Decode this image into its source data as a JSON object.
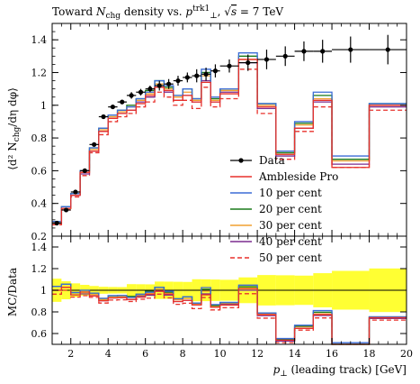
{
  "chart_data": {
    "type": "line",
    "title": "Toward N_chg density vs. p_⊥^trk1, √s = 7 TeV",
    "xlabel": "p_⊥ (leading track) [GeV]",
    "ylabel": "⟨d² N_chg/dη dφ⟩",
    "ratio_ylabel": "MC/Data",
    "xlim": [
      1,
      20
    ],
    "ylim": [
      0.2,
      1.5
    ],
    "ratio_ylim": [
      0.5,
      1.5
    ],
    "x_ticks": [
      2,
      4,
      6,
      8,
      10,
      12,
      14,
      16,
      18,
      20
    ],
    "y_ticks": [
      0.2,
      0.4,
      0.6,
      0.8,
      1,
      1.2,
      1.4
    ],
    "ratio_y_ticks": [
      0.6,
      0.8,
      1,
      1.2,
      1.4
    ],
    "legend_position": "lower-right",
    "bin_edges": [
      1.0,
      1.5,
      2.0,
      2.5,
      3.0,
      3.5,
      4.0,
      4.5,
      5.0,
      5.5,
      6.0,
      6.5,
      7.0,
      7.5,
      8.0,
      8.5,
      9.0,
      9.5,
      10.0,
      11.0,
      12.0,
      13.0,
      14.0,
      15.0,
      16.0,
      18.0,
      20.0
    ],
    "data": {
      "name": "Data",
      "x": [
        1.25,
        1.75,
        2.25,
        2.75,
        3.25,
        3.75,
        4.25,
        4.75,
        5.25,
        5.75,
        6.25,
        6.75,
        7.25,
        7.75,
        8.25,
        8.75,
        9.25,
        9.75,
        10.5,
        11.5,
        12.5,
        13.5,
        14.5,
        15.5,
        17.0,
        19.0
      ],
      "y": [
        0.28,
        0.36,
        0.47,
        0.6,
        0.76,
        0.93,
        0.99,
        1.02,
        1.06,
        1.08,
        1.1,
        1.12,
        1.13,
        1.15,
        1.17,
        1.18,
        1.19,
        1.21,
        1.24,
        1.26,
        1.28,
        1.3,
        1.33,
        1.33,
        1.34,
        1.34
      ],
      "yerr": [
        0.01,
        0.01,
        0.01,
        0.01,
        0.01,
        0.01,
        0.01,
        0.01,
        0.02,
        0.02,
        0.02,
        0.03,
        0.03,
        0.03,
        0.03,
        0.04,
        0.04,
        0.04,
        0.04,
        0.05,
        0.06,
        0.06,
        0.06,
        0.07,
        0.08,
        0.09
      ],
      "color": "#000000"
    },
    "series": [
      {
        "name": "Ambleside Pro",
        "color": "#e8312b",
        "dash": false,
        "values": [
          0.28,
          0.37,
          0.45,
          0.59,
          0.72,
          0.84,
          0.92,
          0.95,
          0.97,
          1.01,
          1.06,
          1.11,
          1.09,
          1.03,
          1.06,
          1.02,
          1.14,
          1.02,
          1.07,
          1.28,
          0.99,
          0.7,
          0.86,
          1.03,
          0.62,
          1.0
        ]
      },
      {
        "name": "10 per cent",
        "color": "#3b6cd6",
        "dash": false,
        "values": [
          0.29,
          0.38,
          0.46,
          0.6,
          0.74,
          0.86,
          0.94,
          0.97,
          0.99,
          1.04,
          1.08,
          1.15,
          1.12,
          1.06,
          1.1,
          1.04,
          1.22,
          1.05,
          1.1,
          1.32,
          1.01,
          0.72,
          0.9,
          1.08,
          0.69,
          1.01
        ]
      },
      {
        "name": "20 per cent",
        "color": "#1a7a1a",
        "dash": false,
        "values": [
          0.29,
          0.38,
          0.46,
          0.6,
          0.74,
          0.86,
          0.94,
          0.97,
          1.0,
          1.04,
          1.09,
          1.15,
          1.11,
          1.06,
          1.1,
          1.04,
          1.2,
          1.04,
          1.1,
          1.3,
          1.01,
          0.71,
          0.89,
          1.06,
          0.67,
          1.01
        ]
      },
      {
        "name": "30 per cent",
        "color": "#f0a030",
        "dash": false,
        "values": [
          0.28,
          0.37,
          0.46,
          0.59,
          0.73,
          0.85,
          0.93,
          0.96,
          0.99,
          1.03,
          1.07,
          1.13,
          1.1,
          1.05,
          1.08,
          1.03,
          1.18,
          1.03,
          1.09,
          1.28,
          1.0,
          0.7,
          0.88,
          1.04,
          0.66,
          1.0
        ]
      },
      {
        "name": "40 per cent",
        "color": "#7b2c8f",
        "dash": false,
        "values": [
          0.28,
          0.37,
          0.45,
          0.58,
          0.72,
          0.84,
          0.92,
          0.95,
          0.97,
          1.02,
          1.05,
          1.11,
          1.08,
          1.03,
          1.06,
          1.02,
          1.15,
          1.02,
          1.08,
          1.26,
          0.98,
          0.69,
          0.86,
          1.02,
          0.64,
          0.99
        ]
      },
      {
        "name": "50 per cent",
        "color": "#e8312b",
        "dash": true,
        "values": [
          0.27,
          0.36,
          0.44,
          0.57,
          0.71,
          0.82,
          0.9,
          0.93,
          0.95,
          0.99,
          1.02,
          1.08,
          1.05,
          1.0,
          1.03,
          0.98,
          1.11,
          0.99,
          1.04,
          1.22,
          0.95,
          0.67,
          0.84,
          0.99,
          0.62,
          0.97
        ]
      }
    ]
  }
}
